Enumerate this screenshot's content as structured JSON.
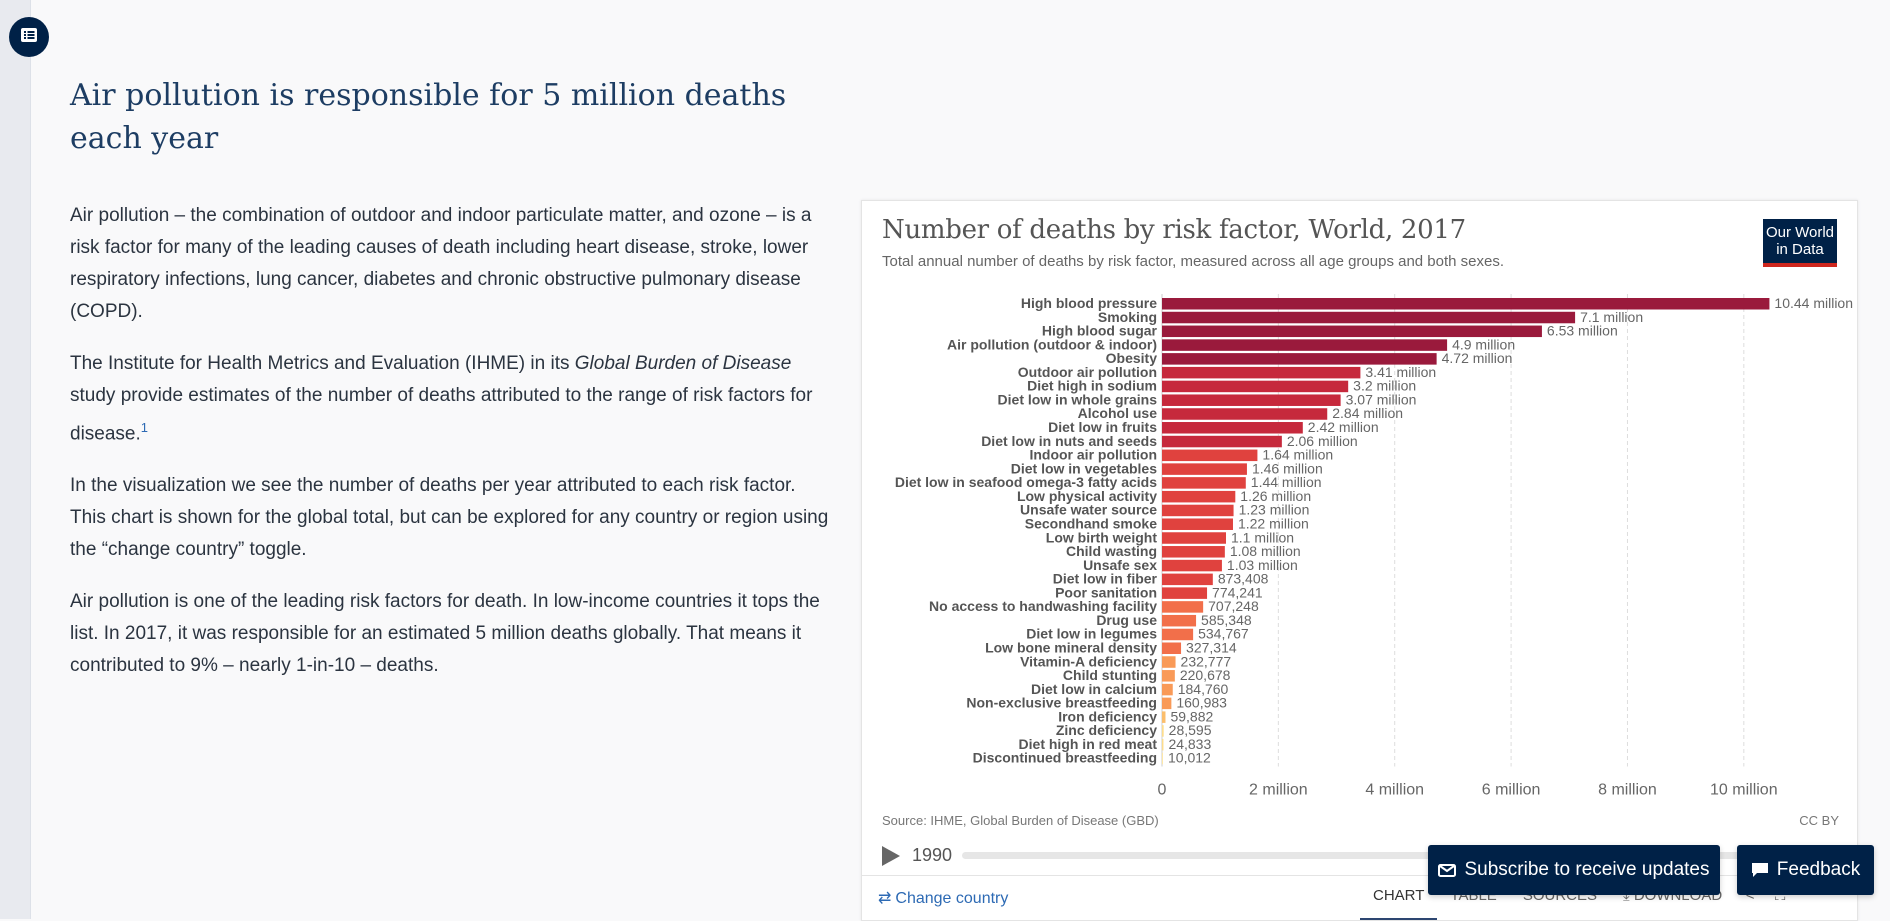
{
  "article": {
    "headline": "Air pollution is responsible for 5 million deaths each year",
    "p1": "Air pollution – the combination of outdoor and indoor particulate matter, and ozone – is a risk factor for many of the leading causes of death including heart disease, stroke, lower respiratory infections, lung cancer, diabetes and chronic obstructive pulmonary disease (COPD).",
    "p2_a": "The Institute for Health Metrics and Evaluation (IHME) in its ",
    "p2_em": "Global Burden of Disease",
    "p2_b": " study provide estimates of the number of deaths attributed to the range of risk factors for disease.",
    "p2_footnote": "1",
    "p3": "In the visualization we see the number of deaths per year attributed to each risk factor. This chart is shown for the global total, but can be explored for any country or region using the “change country” toggle.",
    "p4": "Air pollution is one of the leading risk factors for death. In low-income countries it tops the list. In 2017, it was responsible for an estimated 5 million deaths globally. That means it contributed to 9% – nearly 1-in-10 – deaths."
  },
  "chart": {
    "title": "Number of deaths by risk factor, World, 2017",
    "subtitle": "Total annual number of deaths by risk factor, measured across all age groups and both sexes.",
    "logo_line1": "Our World",
    "logo_line2": "in Data",
    "source": "Source: IHME, Global Burden of Disease (GBD)",
    "license": "CC BY",
    "timeline_year": "1990",
    "change_country": "Change country",
    "tabs": [
      "CHART",
      "TABLE",
      "SOURCES",
      "DOWNLOAD"
    ]
  },
  "cta": {
    "subscribe": "Subscribe to receive updates",
    "feedback": "Feedback"
  },
  "chart_data": {
    "type": "bar",
    "orientation": "horizontal",
    "title": "Number of deaths by risk factor, World, 2017",
    "subtitle": "Total annual number of deaths by risk factor, measured across all age groups and both sexes.",
    "xlim": [
      0,
      11000000
    ],
    "xticks": [
      0,
      2000000,
      4000000,
      6000000,
      8000000,
      10000000
    ],
    "xtick_labels": [
      "0",
      "2 million",
      "4 million",
      "6 million",
      "8 million",
      "10 million"
    ],
    "grid": "vertical dashed",
    "color_scale": [
      "#9a1a3c",
      "#c6293c",
      "#e0423e",
      "#f26f4a",
      "#f99a58",
      "#fbbe6c",
      "#fddd8c",
      "#fee8a8"
    ],
    "categories": [
      "High blood pressure",
      "Smoking",
      "High blood sugar",
      "Air pollution (outdoor & indoor)",
      "Obesity",
      "Outdoor air pollution",
      "Diet high in sodium",
      "Diet low in whole grains",
      "Alcohol use",
      "Diet low in fruits",
      "Diet low in nuts and seeds",
      "Indoor air pollution",
      "Diet low in vegetables",
      "Diet low in seafood omega-3 fatty acids",
      "Low physical activity",
      "Unsafe water source",
      "Secondhand smoke",
      "Low birth weight",
      "Child wasting",
      "Unsafe sex",
      "Diet low in fiber",
      "Poor sanitation",
      "No access to handwashing facility",
      "Drug use",
      "Diet low in legumes",
      "Low bone mineral density",
      "Vitamin-A deficiency",
      "Child stunting",
      "Diet low in calcium",
      "Non-exclusive breastfeeding",
      "Iron deficiency",
      "Zinc deficiency",
      "Diet high in red meat",
      "Discontinued breastfeeding"
    ],
    "values": [
      10440000,
      7100000,
      6530000,
      4900000,
      4720000,
      3410000,
      3200000,
      3070000,
      2840000,
      2420000,
      2060000,
      1640000,
      1460000,
      1440000,
      1260000,
      1230000,
      1220000,
      1100000,
      1080000,
      1030000,
      873408,
      774241,
      707248,
      585348,
      534767,
      327314,
      232777,
      220678,
      184760,
      160983,
      59882,
      28595,
      24833,
      10012
    ],
    "value_labels": [
      "10.44 million",
      "7.1 million",
      "6.53 million",
      "4.9 million",
      "4.72 million",
      "3.41 million",
      "3.2 million",
      "3.07 million",
      "2.84 million",
      "2.42 million",
      "2.06 million",
      "1.64 million",
      "1.46 million",
      "1.44 million",
      "1.26 million",
      "1.23 million",
      "1.22 million",
      "1.1 million",
      "1.08 million",
      "1.03 million",
      "873,408",
      "774,241",
      "707,248",
      "585,348",
      "534,767",
      "327,314",
      "232,777",
      "220,678",
      "184,760",
      "160,983",
      "59,882",
      "28,595",
      "24,833",
      "10,012"
    ]
  }
}
